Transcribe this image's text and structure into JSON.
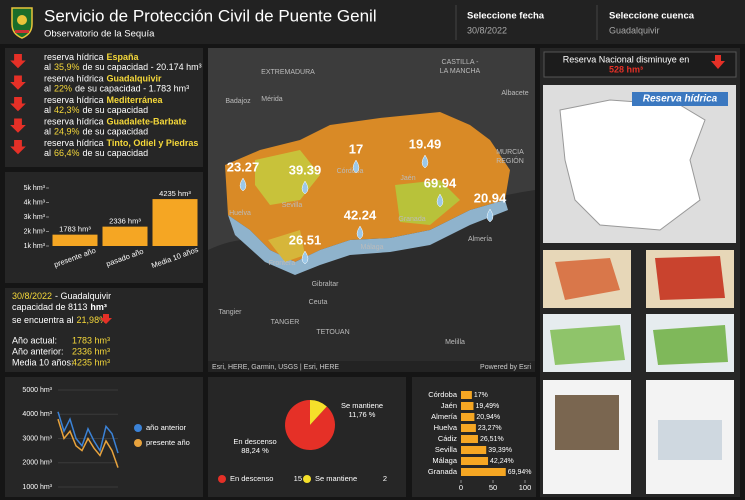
{
  "header": {
    "title": "Servicio de Protección Civil de Puente Genil",
    "subtitle": "Observatorio de la Sequía",
    "date_label": "Seleccione fecha",
    "date_value": "30/8/2022",
    "basin_label": "Seleccione cuenca",
    "basin_value": "Guadalquivir"
  },
  "reservas": [
    {
      "text": "reserva hídrica",
      "name": "España",
      "pre": "al",
      "pct": "35,9%",
      "post": "de su capacidad -  20.174 hm³"
    },
    {
      "text": "reserva hídrica",
      "name": "Guadalquivir",
      "pre": "al",
      "pct": "22%",
      "post": "de su capacidad -  1.783 hm³"
    },
    {
      "text": "reserva hídrica",
      "name": "Mediterránea",
      "pre": "al",
      "pct": "42,3%",
      "post": "de su capacidad"
    },
    {
      "text": "reserva hídrica",
      "name": "Guadalete-Barbate",
      "pre": "al",
      "pct": "24,9%",
      "post": "de su capacidad"
    },
    {
      "text": "reserva hídrica",
      "name": "Tinto, Odiel y Piedras",
      "pre": "al",
      "pct": "66,4%",
      "post": "de su capacidad"
    }
  ],
  "info": {
    "date": "30/8/2022",
    "basin": "- Guadalquivir",
    "capacity": "capacidad de 8113",
    "capacity_unit": "hm³",
    "status": "se encuentra al",
    "status_pct": "21,98%",
    "rows": [
      [
        "Año actual:",
        "1783 hm³"
      ],
      [
        "Año anterior:",
        "2336 hm³"
      ],
      [
        "Media 10 años:",
        "4235 hm³"
      ]
    ]
  },
  "map": {
    "values": [
      23.27,
      39.39,
      17,
      19.49,
      69.94,
      20.94,
      42.24,
      26.51
    ],
    "places": [
      "EXTREMADURA",
      "CASTILLA -",
      "LA MANCHA",
      "Badajoz",
      "Mérida",
      "Albacete",
      "MURCIA",
      "REGIÓN",
      "Huelva",
      "Sevilla",
      "Córdoba",
      "Jaén",
      "Granada",
      "Almería",
      "Málaga",
      "Frontera",
      "Gibraltar",
      "Ceuta",
      "Tangier",
      "TANGER",
      "TETOUAN",
      "Melilla"
    ],
    "attribution": "Esri, HERE, Garmin, USGS | Esri, HERE",
    "powered": "Powered by Esri"
  },
  "national": {
    "text": "Reserva Nacional disminuye en",
    "value": "528 hm³",
    "image_label": "Reserva hídrica"
  },
  "chart_data": [
    {
      "type": "bar",
      "categories": [
        "presente año",
        "pasado año",
        "Media 10 años"
      ],
      "values": [
        1783,
        2336,
        4235
      ],
      "value_labels": [
        "1783 hm³",
        "2336 hm³",
        "4235 hm³"
      ],
      "color": "#f5a623",
      "ylim": [
        1000,
        5000
      ],
      "yticks": [
        {
          "value": 1000,
          "label": "1k hm³"
        },
        {
          "value": 2000,
          "label": "2k hm³"
        },
        {
          "value": 3000,
          "label": "3k hm³"
        },
        {
          "value": 4000,
          "label": "4k hm³"
        },
        {
          "value": 5000,
          "label": "5k hm³"
        }
      ]
    },
    {
      "type": "line",
      "ylim": [
        1000,
        5000
      ],
      "yticks": [
        {
          "value": 1000,
          "label": "1000 hm³"
        },
        {
          "value": 2000,
          "label": "2000 hm³"
        },
        {
          "value": 3000,
          "label": "3000 hm³"
        },
        {
          "value": 4000,
          "label": "4000 hm³"
        },
        {
          "value": 5000,
          "label": "5000 hm³"
        }
      ],
      "series": [
        {
          "name": "año anterior",
          "color": "#3b82d6",
          "values": [
            4100,
            3300,
            3800,
            3000,
            2700,
            3400,
            2900,
            2500,
            3500,
            3200,
            2400
          ]
        },
        {
          "name": "presente año",
          "color": "#e8a33d",
          "values": [
            3800,
            3000,
            3300,
            2700,
            2500,
            3000,
            2600,
            2300,
            2900,
            2500,
            1800
          ]
        }
      ]
    },
    {
      "type": "pie",
      "categories": [
        "En descenso",
        "Se mantiene"
      ],
      "values": [
        88.24,
        11.76
      ],
      "value_labels": [
        "88,24 %",
        "11,76 %"
      ],
      "counts": [
        15,
        2
      ],
      "colors": [
        "#e53027",
        "#f5e02a"
      ]
    },
    {
      "type": "hbar",
      "categories": [
        "Córdoba",
        "Jaén",
        "Almería",
        "Huelva",
        "Cádiz",
        "Sevilla",
        "Málaga",
        "Granada"
      ],
      "values": [
        17,
        19.49,
        20.94,
        23.27,
        26.51,
        39.39,
        42.24,
        69.94
      ],
      "value_labels": [
        "17%",
        "19,49%",
        "20,94%",
        "23,27%",
        "26,51%",
        "39,39%",
        "42,24%",
        "69,94%"
      ],
      "color": "#f5a623",
      "xlim": [
        0,
        100
      ],
      "xticks": [
        0,
        50,
        100
      ]
    }
  ]
}
